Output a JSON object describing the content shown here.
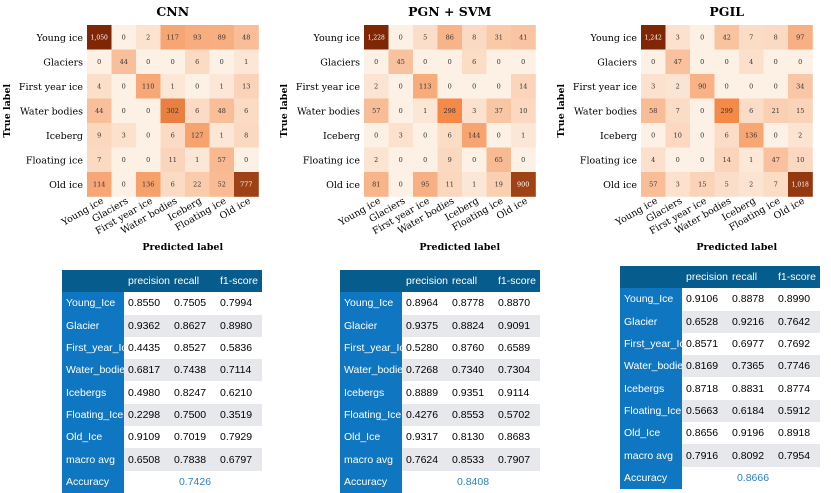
{
  "chart_data": [
    {
      "type": "heatmap",
      "title": "CNN",
      "xlabel": "Predicted label",
      "ylabel": "True label",
      "labels": [
        "Young ice",
        "Glaciers",
        "First year ice",
        "Water bodies",
        "Iceberg",
        "Floating ice",
        "Old ice"
      ],
      "values": [
        [
          "1,050",
          "0",
          "2",
          "117",
          "93",
          "89",
          "48"
        ],
        [
          "0",
          "44",
          "0",
          "0",
          "6",
          "0",
          "1"
        ],
        [
          "4",
          "0",
          "110",
          "1",
          "0",
          "1",
          "13"
        ],
        [
          "44",
          "0",
          "0",
          "302",
          "6",
          "48",
          "6"
        ],
        [
          "9",
          "3",
          "0",
          "6",
          "127",
          "1",
          "8"
        ],
        [
          "7",
          "0",
          "0",
          "11",
          "1",
          "57",
          "0"
        ],
        [
          "114",
          "0",
          "136",
          "6",
          "22",
          "52",
          "777"
        ]
      ]
    },
    {
      "type": "heatmap",
      "title": "PGN + SVM",
      "xlabel": "Predicted label",
      "ylabel": "True label",
      "labels": [
        "Young ice",
        "Glaciers",
        "First year ice",
        "Water bodies",
        "Iceberg",
        "Floating ice",
        "Old ice"
      ],
      "values": [
        [
          "1,228",
          "0",
          "5",
          "86",
          "8",
          "31",
          "41"
        ],
        [
          "0",
          "45",
          "0",
          "0",
          "6",
          "0",
          "0"
        ],
        [
          "2",
          "0",
          "113",
          "0",
          "0",
          "0",
          "14"
        ],
        [
          "57",
          "0",
          "1",
          "298",
          "3",
          "37",
          "10"
        ],
        [
          "0",
          "3",
          "0",
          "6",
          "144",
          "0",
          "1"
        ],
        [
          "2",
          "0",
          "0",
          "9",
          "0",
          "65",
          "0"
        ],
        [
          "81",
          "0",
          "95",
          "11",
          "1",
          "19",
          "900"
        ]
      ]
    },
    {
      "type": "heatmap",
      "title": "PGIL",
      "xlabel": "Predicted label",
      "ylabel": "True label",
      "labels": [
        "Young ice",
        "Glaciers",
        "First year ice",
        "Water bodies",
        "Iceberg",
        "Floating ice",
        "Old ice"
      ],
      "values": [
        [
          "1,242",
          "3",
          "0",
          "42",
          "7",
          "8",
          "97"
        ],
        [
          "0",
          "47",
          "0",
          "0",
          "4",
          "0",
          "0"
        ],
        [
          "3",
          "2",
          "90",
          "0",
          "0",
          "0",
          "34"
        ],
        [
          "58",
          "7",
          "0",
          "299",
          "6",
          "21",
          "15"
        ],
        [
          "0",
          "10",
          "0",
          "6",
          "136",
          "0",
          "2"
        ],
        [
          "4",
          "0",
          "0",
          "14",
          "1",
          "47",
          "10"
        ],
        [
          "57",
          "3",
          "15",
          "5",
          "2",
          "7",
          "1,018"
        ]
      ]
    }
  ],
  "tables": [
    {
      "columns": [
        "precision",
        "recall",
        "f1-score"
      ],
      "rows": [
        {
          "label": "Young_Ice",
          "values": [
            "0.8550",
            "0.7505",
            "0.7994"
          ]
        },
        {
          "label": "Glacier",
          "values": [
            "0.9362",
            "0.8627",
            "0.8980"
          ]
        },
        {
          "label": "First_year_Ice",
          "values": [
            "0.4435",
            "0.8527",
            "0.5836"
          ]
        },
        {
          "label": "Water_bodies",
          "values": [
            "0.6817",
            "0.7438",
            "0.7114"
          ]
        },
        {
          "label": "Icebergs",
          "values": [
            "0.4980",
            "0.8247",
            "0.6210"
          ]
        },
        {
          "label": "Floating_Ice",
          "values": [
            "0.2298",
            "0.7500",
            "0.3519"
          ]
        },
        {
          "label": "Old_Ice",
          "values": [
            "0.9109",
            "0.7019",
            "0.7929"
          ]
        },
        {
          "label": "macro avg",
          "values": [
            "0.6508",
            "0.7838",
            "0.6797"
          ]
        }
      ],
      "accuracy_label": "Accuracy",
      "accuracy": "0.7426",
      "highlight": []
    },
    {
      "columns": [
        "precision",
        "recall",
        "f1-score"
      ],
      "rows": [
        {
          "label": "Young_Ice",
          "values": [
            "0.8964",
            "0.8778",
            "0.8870"
          ]
        },
        {
          "label": "Glacier",
          "values": [
            "0.9375",
            "0.8824",
            "0.9091"
          ]
        },
        {
          "label": "First_year_Ice",
          "values": [
            "0.5280",
            "0.8760",
            "0.6589"
          ]
        },
        {
          "label": "Water_bodies",
          "values": [
            "0.7268",
            "0.7340",
            "0.7304"
          ]
        },
        {
          "label": "Icebergs",
          "values": [
            "0.8889",
            "0.9351",
            "0.9114"
          ]
        },
        {
          "label": "Floating_Ice",
          "values": [
            "0.4276",
            "0.8553",
            "0.5702"
          ]
        },
        {
          "label": "Old_Ice",
          "values": [
            "0.9317",
            "0.8130",
            "0.8683"
          ]
        },
        {
          "label": "macro avg",
          "values": [
            "0.7624",
            "0.8533",
            "0.7907"
          ]
        }
      ],
      "accuracy_label": "Accuracy",
      "accuracy": "0.8408",
      "highlight": [
        [
          1,
          2
        ],
        [
          4,
          2
        ]
      ]
    },
    {
      "columns": [
        "precision",
        "recall",
        "f1-score"
      ],
      "rows": [
        {
          "label": "Young_Ice",
          "values": [
            "0.9106",
            "0.8878",
            "0.8990"
          ]
        },
        {
          "label": "Glacier",
          "values": [
            "0.6528",
            "0.9216",
            "0.7642"
          ]
        },
        {
          "label": "First_year_Ice",
          "values": [
            "0.8571",
            "0.6977",
            "0.7692"
          ]
        },
        {
          "label": "Water_bodies",
          "values": [
            "0.8169",
            "0.7365",
            "0.7746"
          ]
        },
        {
          "label": "Icebergs",
          "values": [
            "0.8718",
            "0.8831",
            "0.8774"
          ]
        },
        {
          "label": "Floating_Ice",
          "values": [
            "0.5663",
            "0.6184",
            "0.5912"
          ]
        },
        {
          "label": "Old_Ice",
          "values": [
            "0.8656",
            "0.9196",
            "0.8918"
          ]
        },
        {
          "label": "macro avg",
          "values": [
            "0.7916",
            "0.8092",
            "0.7954"
          ]
        }
      ],
      "accuracy_label": "Accuracy",
      "accuracy": "0.8666",
      "highlight": []
    }
  ],
  "colors": {
    "heat_low": "#fdf1e5",
    "heat_high": "#7f2704",
    "header_bg": "#065c8c",
    "rowlabel_bg": "#0f76c2",
    "highlight_text": "#e03426",
    "macro_text": "#2a7fc6"
  }
}
